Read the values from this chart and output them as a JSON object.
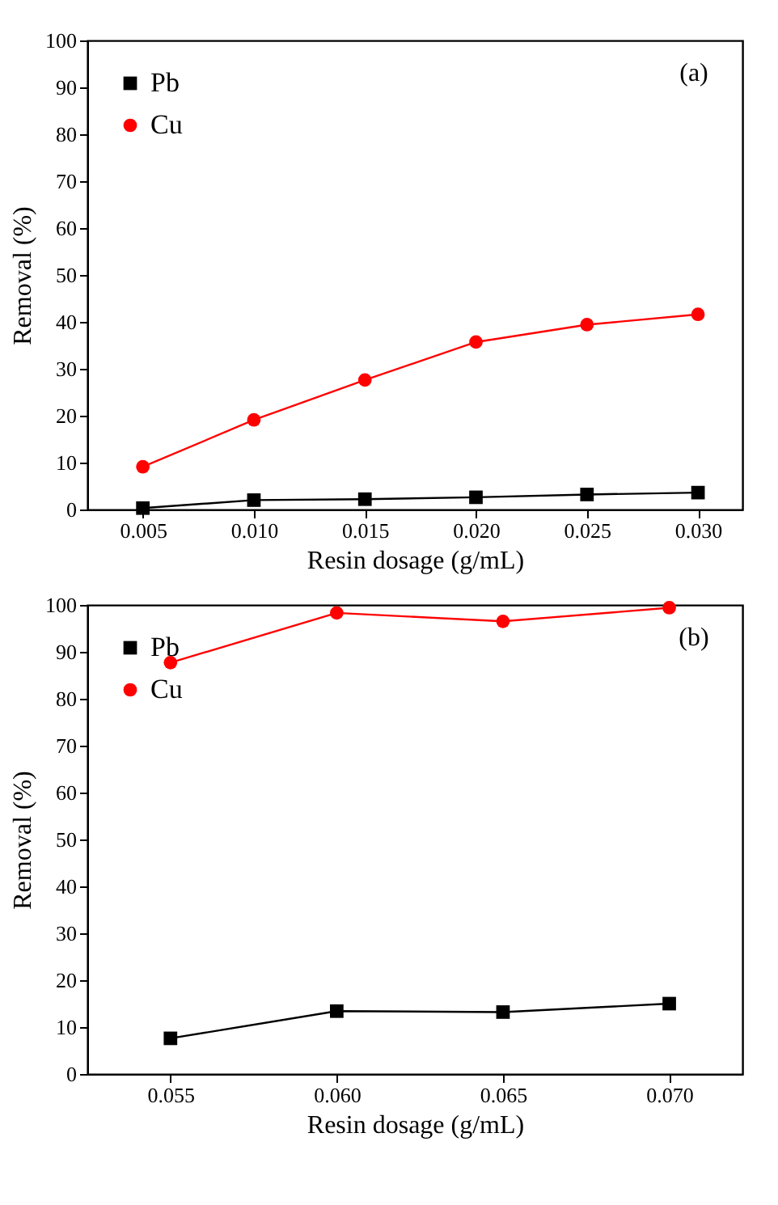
{
  "chart_data": [
    {
      "type": "line",
      "xlabel": "Resin dosage (g/mL)",
      "ylabel": "Removal (%)",
      "annotations": [
        "(a)"
      ],
      "x": [
        0.005,
        0.01,
        0.015,
        0.02,
        0.025,
        0.03
      ],
      "xlim": [
        0.0025,
        0.032
      ],
      "xticks": [
        {
          "value": 0.005,
          "label": "0.005"
        },
        {
          "value": 0.01,
          "label": "0.010"
        },
        {
          "value": 0.015,
          "label": "0.015"
        },
        {
          "value": 0.02,
          "label": "0.020"
        },
        {
          "value": 0.025,
          "label": "0.025"
        },
        {
          "value": 0.03,
          "label": "0.030"
        }
      ],
      "ylim": [
        0,
        100
      ],
      "yticks": [
        0,
        10,
        20,
        30,
        40,
        50,
        60,
        70,
        80,
        90,
        100
      ],
      "legend": "top left",
      "grid": false,
      "series": [
        {
          "name": "Pb",
          "color": "#000000",
          "marker": "square",
          "values": [
            0.3,
            2.0,
            2.2,
            2.6,
            3.2,
            3.6
          ]
        },
        {
          "name": "Cu",
          "color": "#ff0000",
          "marker": "circle",
          "values": [
            9.1,
            19.1,
            27.6,
            35.7,
            39.4,
            41.6
          ]
        }
      ]
    },
    {
      "type": "line",
      "xlabel": "Resin dosage (g/mL)",
      "ylabel": "Removal (%)",
      "annotations": [
        "(b)"
      ],
      "x": [
        0.055,
        0.06,
        0.065,
        0.07
      ],
      "xlim": [
        0.0525,
        0.0722
      ],
      "xticks": [
        {
          "value": 0.055,
          "label": "0.055"
        },
        {
          "value": 0.06,
          "label": "0.060"
        },
        {
          "value": 0.065,
          "label": "0.065"
        },
        {
          "value": 0.07,
          "label": "0.070"
        }
      ],
      "ylim": [
        0,
        100
      ],
      "yticks": [
        0,
        10,
        20,
        30,
        40,
        50,
        60,
        70,
        80,
        90,
        100
      ],
      "legend": "top left",
      "grid": false,
      "series": [
        {
          "name": "Pb",
          "color": "#000000",
          "marker": "square",
          "values": [
            7.6,
            13.4,
            13.2,
            15.0
          ]
        },
        {
          "name": "Cu",
          "color": "#ff0000",
          "marker": "circle",
          "values": [
            87.7,
            98.3,
            96.5,
            99.4
          ]
        }
      ]
    }
  ]
}
